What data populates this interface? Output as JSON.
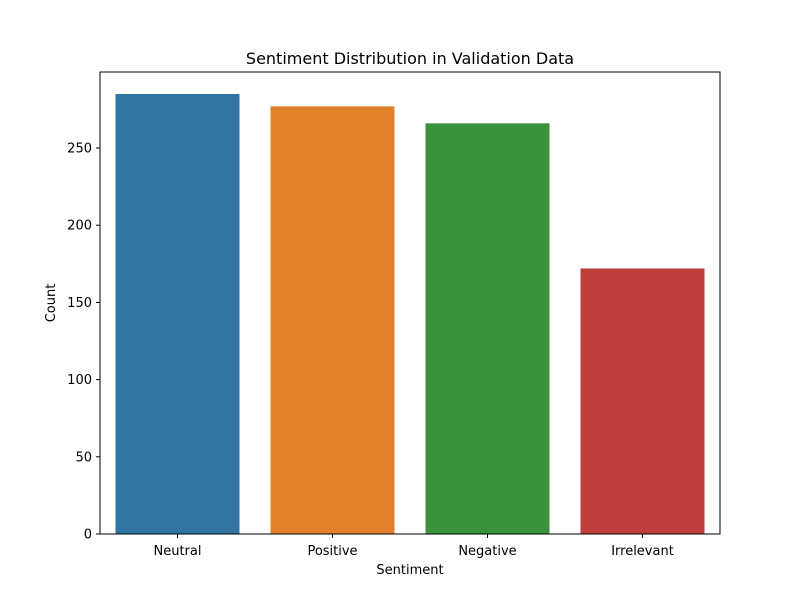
{
  "chart_data": {
    "type": "bar",
    "title": "Sentiment Distribution in Validation Data",
    "xlabel": "Sentiment",
    "ylabel": "Count",
    "categories": [
      "Neutral",
      "Positive",
      "Negative",
      "Irrelevant"
    ],
    "values": [
      285,
      277,
      266,
      172
    ],
    "colors": [
      "#3274a1",
      "#e1812c",
      "#3a923a",
      "#c03d3e"
    ],
    "ylim": [
      0,
      299.25
    ],
    "yticks": [
      0,
      50,
      100,
      150,
      200,
      250
    ],
    "grid": false,
    "legend": "none"
  }
}
